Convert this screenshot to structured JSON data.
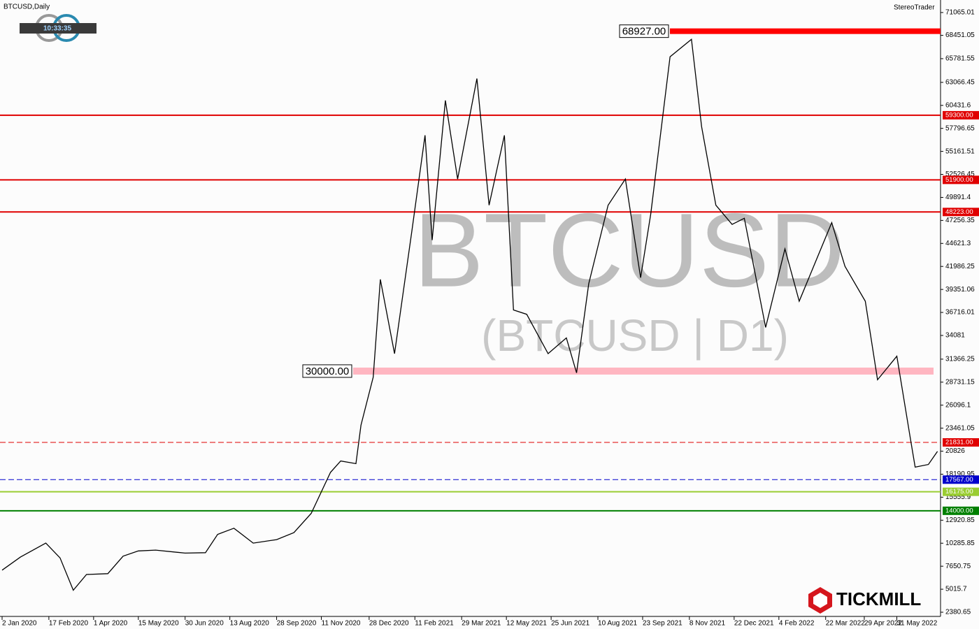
{
  "header": {
    "symbol": "BTCUSD,Daily",
    "clock": "10:33:35",
    "platform": "StereoTrader",
    "brand": "TICKMILL"
  },
  "chart_data": {
    "type": "line",
    "watermark": "BTCUSD",
    "watermark_sub": "(BTCUSD | D1)",
    "color": "#000000",
    "x": [
      "2 Jan 2020",
      "20 Jan 2020",
      "14 Feb 2020",
      "28 Feb 2020",
      "12 Mar 2020",
      "25 Mar 2020",
      "15 Apr 2020",
      "30 Apr 2020",
      "15 May 2020",
      "1 Jun 2020",
      "30 Jun 2020",
      "20 Jul 2020",
      "1 Aug 2020",
      "17 Aug 2020",
      "5 Sep 2020",
      "28 Sep 2020",
      "15 Oct 2020",
      "1 Nov 2020",
      "20 Nov 2020",
      "30 Nov 2020",
      "15 Dec 2020",
      "20 Dec 2020",
      "1 Jan 2021",
      "8 Jan 2021",
      "22 Jan 2021",
      "8 Feb 2021",
      "21 Feb 2021",
      "28 Feb 2021",
      "13 Mar 2021",
      "25 Mar 2021",
      "13 Apr 2021",
      "25 Apr 2021",
      "10 May 2021",
      "19 May 2021",
      "1 Jun 2021",
      "22 Jun 2021",
      "10 Jul 2021",
      "20 Jul 2021",
      "1 Aug 2021",
      "20 Aug 2021",
      "6 Sep 2021",
      "21 Sep 2021",
      "1 Oct 2021",
      "20 Oct 2021",
      "10 Nov 2021",
      "20 Nov 2021",
      "4 Dec 2021",
      "20 Dec 2021",
      "1 Jan 2022",
      "22 Jan 2022",
      "10 Feb 2022",
      "24 Feb 2022",
      "28 Mar 2022",
      "10 Apr 2022",
      "30 Apr 2022",
      "12 May 2022",
      "31 May 2022",
      "13 Jun 2022",
      "18 Jun 2022",
      "1 Jul 2022",
      "10 Jul 2022"
    ],
    "values": [
      7200,
      8700,
      10300,
      8600,
      4900,
      6700,
      6800,
      8800,
      9400,
      9500,
      9150,
      9200,
      11300,
      12000,
      10300,
      10700,
      11500,
      13700,
      18400,
      19700,
      19400,
      23800,
      29300,
      40500,
      32000,
      46000,
      57000,
      45000,
      61000,
      52000,
      63500,
      49000,
      57000,
      37000,
      36500,
      32000,
      33800,
      29800,
      40000,
      49000,
      52000,
      40700,
      48000,
      66000,
      68000,
      58000,
      49000,
      46800,
      47500,
      35000,
      44000,
      38000,
      47000,
      42000,
      38000,
      29000,
      31700,
      22500,
      19000,
      19300,
      20800
    ],
    "xlim": [
      "2 Jan 2020",
      "13 Jul 2022"
    ],
    "xticks": [
      "2 Jan 2020",
      "17 Feb 2020",
      "1 Apr 2020",
      "15 May 2020",
      "30 Jun 2020",
      "13 Aug 2020",
      "28 Sep 2020",
      "11 Nov 2020",
      "28 Dec 2020",
      "11 Feb 2021",
      "29 Mar 2021",
      "12 May 2021",
      "25 Jun 2021",
      "10 Aug 2021",
      "23 Sep 2021",
      "8 Nov 2021",
      "22 Dec 2021",
      "4 Feb 2022",
      "22 Mar 2022",
      "29 Apr 2022",
      "31 May 2022"
    ],
    "ylim": [
      620,
      72500
    ],
    "yticks": [
      71065.01,
      68451.05,
      65781.55,
      63066.45,
      60431.6,
      57796.65,
      55161.51,
      52526.45,
      49891.4,
      47256.35,
      44621.3,
      41986.25,
      39351.06,
      36716.01,
      34081,
      31366.25,
      28731.15,
      26096.1,
      23461.05,
      20826,
      18190.95,
      15555.9,
      12920.85,
      10285.85,
      7650.75,
      5015.7,
      2380.65
    ],
    "levels": [
      {
        "value": 68927,
        "label": "68927.00",
        "color": "#ff0000",
        "style": "thick"
      },
      {
        "value": 59300,
        "label": "59300.00",
        "color": "#e00000",
        "style": "solid"
      },
      {
        "value": 51900,
        "label": "51900.00",
        "color": "#e00000",
        "style": "solid"
      },
      {
        "value": 48223,
        "label": "48223.00",
        "color": "#e00000",
        "style": "solid"
      },
      {
        "value": 30000,
        "label": "30000.00",
        "color": "#ffb6c1",
        "style": "band"
      },
      {
        "value": 21831,
        "label": "21831.00",
        "color": "#e00000",
        "style": "dashed"
      },
      {
        "value": 17567,
        "label": "17567.00",
        "color": "#0000cc",
        "style": "dashed"
      },
      {
        "value": 16175,
        "label": "16175.00",
        "color": "#9acd32",
        "style": "solid"
      },
      {
        "value": 14000,
        "label": "14000.00",
        "color": "#008000",
        "style": "solid"
      }
    ]
  }
}
